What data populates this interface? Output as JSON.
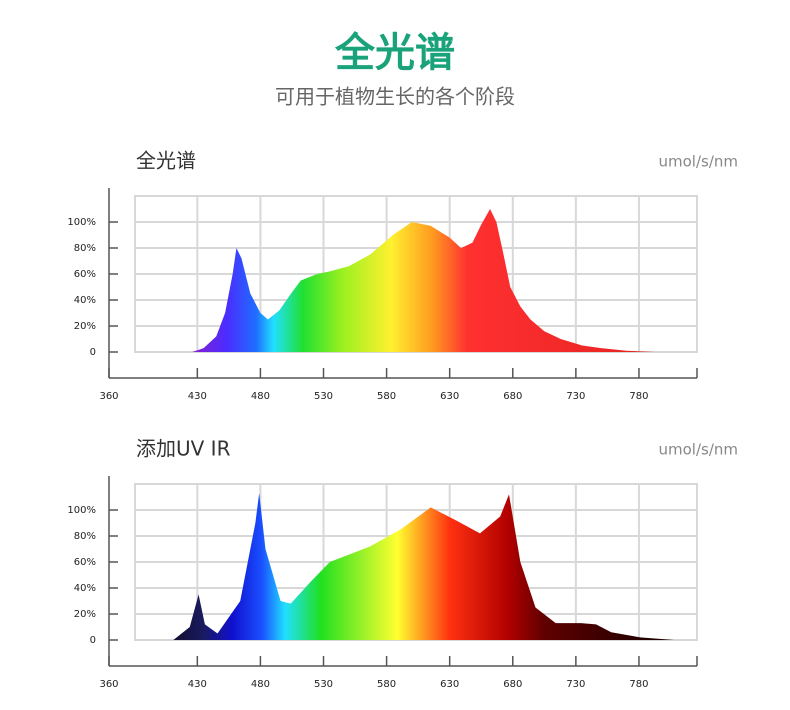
{
  "header": {
    "title": "全光谱",
    "subtitle": "可用于植物生长的各个阶段"
  },
  "chart_data": [
    {
      "type": "area",
      "title": "全光谱",
      "unit_label": "umol/s/nm",
      "x": [
        426,
        435,
        445,
        452,
        458,
        461,
        465,
        472,
        480,
        486,
        495,
        505,
        512,
        525,
        535,
        550,
        567,
        585,
        600,
        615,
        630,
        639,
        648,
        655,
        662,
        667,
        672,
        678,
        686,
        694,
        705,
        718,
        735,
        750,
        770,
        793
      ],
      "values": [
        0,
        3,
        12,
        30,
        60,
        80,
        72,
        45,
        30,
        25,
        32,
        46,
        55,
        60,
        62,
        66,
        75,
        90,
        100,
        97,
        88,
        80,
        84,
        98,
        110,
        100,
        78,
        50,
        35,
        25,
        16,
        10,
        5,
        3,
        1,
        0
      ],
      "xlim": [
        360,
        826
      ],
      "ylim": [
        0,
        120
      ],
      "xticks": [
        360,
        430,
        480,
        530,
        580,
        630,
        680,
        730,
        780
      ],
      "yticks": [
        0,
        {
          "value": 20,
          "label": "20%"
        },
        {
          "value": 40,
          "label": "40%"
        },
        {
          "value": 60,
          "label": "60%"
        },
        {
          "value": 80,
          "label": "80%"
        },
        {
          "value": 100,
          "label": "100%"
        }
      ],
      "grid": true
    },
    {
      "type": "area",
      "title": "添加UV IR",
      "unit_label": "umol/s/nm",
      "x": [
        411,
        424,
        431,
        436,
        446,
        464,
        476,
        479,
        484,
        496,
        504,
        520,
        535,
        567,
        591,
        615,
        635,
        654,
        670,
        677,
        686,
        698,
        714,
        734,
        746,
        758,
        781,
        808
      ],
      "values": [
        0,
        10,
        35,
        12,
        5,
        30,
        90,
        113,
        70,
        30,
        28,
        45,
        60,
        72,
        85,
        102,
        92,
        82,
        95,
        112,
        60,
        25,
        13,
        13,
        12,
        6,
        2,
        0
      ],
      "xlim": [
        360,
        826
      ],
      "ylim": [
        0,
        120
      ],
      "xticks": [
        360,
        430,
        480,
        530,
        580,
        630,
        680,
        730,
        780
      ],
      "yticks": [
        0,
        {
          "value": 20,
          "label": "20%"
        },
        {
          "value": 40,
          "label": "40%"
        },
        {
          "value": 60,
          "label": "60%"
        },
        {
          "value": 80,
          "label": "80%"
        },
        {
          "value": 100,
          "label": "100%"
        }
      ],
      "grid": true
    }
  ]
}
